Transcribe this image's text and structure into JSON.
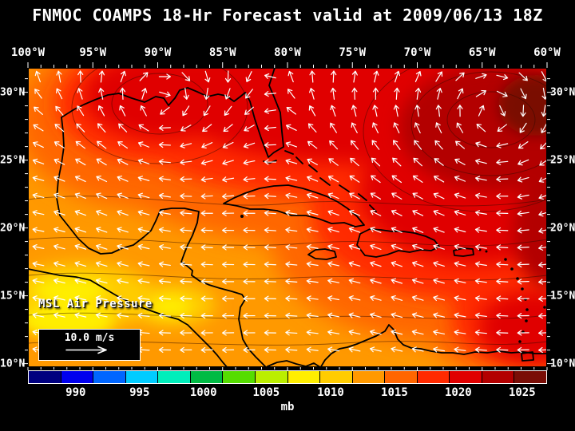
{
  "title": "FNMOC COAMPS 18-Hr Forecast valid at 2009/06/13 18Z",
  "axes": {
    "top": [
      "100°W",
      "95°W",
      "90°W",
      "85°W",
      "80°W",
      "75°W",
      "70°W",
      "65°W",
      "60°W"
    ],
    "left": [
      "30°N",
      "25°N",
      "20°N",
      "15°N",
      "10°N"
    ],
    "right": [
      "30°N",
      "25°N",
      "20°N",
      "15°N",
      "10°N"
    ]
  },
  "map": {
    "field_label": "MSL Air Pressure",
    "wind_legend_label": "10.0 m/s"
  },
  "colorbar": {
    "unit": "mb",
    "ticks": [
      "990",
      "995",
      "1000",
      "1005",
      "1010",
      "1015",
      "1020",
      "1025"
    ],
    "tick_positions_pct": [
      9.2,
      21.5,
      33.8,
      45.9,
      58.3,
      70.6,
      82.9,
      95.2
    ],
    "colors": [
      "#00007f",
      "#0000ee",
      "#0066ff",
      "#00ccff",
      "#00eebb",
      "#00bb44",
      "#55dd00",
      "#bbee00",
      "#ffee00",
      "#ffcc00",
      "#ff9900",
      "#ff6600",
      "#ff2a00",
      "#e00000",
      "#b30000",
      "#7a0e06"
    ]
  },
  "theme": {
    "background": "#000000",
    "text": "#ffffff",
    "coastline": "#000000",
    "wind_arrow": "#ffffff"
  },
  "chart_data": {
    "type": "heatmap",
    "title": "FNMOC COAMPS 18-Hr Forecast valid at 2009/06/13 18Z",
    "field": "MSL Air Pressure",
    "unit": "mb",
    "colorbar_ticks": [
      990,
      995,
      1000,
      1005,
      1010,
      1015,
      1020,
      1025
    ],
    "x_ticks": [
      "100°W",
      "95°W",
      "90°W",
      "85°W",
      "80°W",
      "75°W",
      "70°W",
      "65°W",
      "60°W"
    ],
    "y_ticks": [
      "30°N",
      "25°N",
      "20°N",
      "15°N",
      "10°N"
    ],
    "wind_reference_vector": "10.0 m/s",
    "reading": "High pressure (>1020 mb, dark red) over the western Atlantic; broad 1012-1018 mb (orange-red) over Gulf of Mexico and Caribbean; ~1008-1010 mb (yellow) pockets near the Pacific coast of Central America; easterly trade-wind arrows across the southern half with clockwise circulation around the Atlantic high."
  }
}
